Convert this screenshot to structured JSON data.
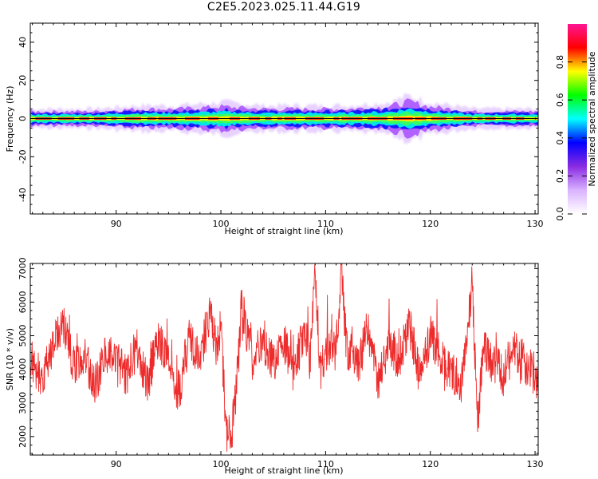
{
  "title": "C2E5.2023.025.11.44.G19",
  "colors": {
    "snr_line": "#ee2b2b",
    "colormap": [
      "#ffffff",
      "#d9b3ff",
      "#8a2be2",
      "#0000ff",
      "#00ffff",
      "#00ff00",
      "#ffff00",
      "#ff0000",
      "#ff1493"
    ]
  },
  "chart_data": [
    {
      "type": "heatmap",
      "xlabel": "Height of straight line (km)",
      "ylabel": "Frequency (Hz)",
      "xlim": [
        81.8,
        130.3
      ],
      "ylim": [
        -50,
        50
      ],
      "xticks": [
        90,
        100,
        110,
        120,
        130
      ],
      "yticks": [
        40,
        20,
        0,
        -20,
        -40
      ],
      "colorbar": {
        "label": "Normalized spectral amplitude",
        "range": [
          0,
          1
        ],
        "ticks": [
          "0.0",
          "0.2",
          "0.4",
          "0.6",
          "0.8"
        ]
      },
      "ridge_center_hz": 0,
      "ridge_halfwidth_hz": [
        {
          "x": 82,
          "w": 3
        },
        {
          "x": 88,
          "w": 3
        },
        {
          "x": 92,
          "w": 4
        },
        {
          "x": 96,
          "w": 4
        },
        {
          "x": 100,
          "w": 5
        },
        {
          "x": 104,
          "w": 4
        },
        {
          "x": 108,
          "w": 4
        },
        {
          "x": 112,
          "w": 4
        },
        {
          "x": 116,
          "w": 5
        },
        {
          "x": 118,
          "w": 7
        },
        {
          "x": 120,
          "w": 5
        },
        {
          "x": 124,
          "w": 3
        },
        {
          "x": 130,
          "w": 3
        }
      ]
    },
    {
      "type": "line",
      "xlabel": "Height of straight line (km)",
      "ylabel": "SNR (10 * v/v)",
      "xlim": [
        81.8,
        130.3
      ],
      "ylim": [
        1450,
        7150
      ],
      "xticks": [
        90,
        100,
        110,
        120,
        130
      ],
      "yticks": [
        2000,
        3000,
        4000,
        5000,
        6000,
        7000
      ],
      "series": [
        {
          "x": [
            82,
            83,
            84,
            85,
            86,
            87,
            88,
            89,
            90,
            91,
            92,
            93,
            94,
            95,
            96,
            97,
            98,
            99,
            99.5,
            100,
            100.5,
            101,
            101.5,
            102,
            103,
            104,
            105,
            106,
            107,
            108,
            108.5,
            109,
            109.5,
            110,
            111,
            111.5,
            112,
            113,
            114,
            115,
            116,
            117,
            118,
            119,
            120,
            121,
            122,
            123,
            123.5,
            124,
            124.5,
            125,
            126,
            127,
            128,
            129,
            130,
            130.3
          ],
          "y": [
            4200,
            3700,
            4800,
            5300,
            4000,
            4300,
            3500,
            4600,
            4200,
            3800,
            4700,
            3600,
            4900,
            4100,
            3300,
            5000,
            4300,
            5800,
            4700,
            5200,
            2200,
            2000,
            3500,
            5900,
            4300,
            4900,
            4100,
            4800,
            3900,
            5300,
            4300,
            7000,
            3800,
            4600,
            4500,
            7000,
            4700,
            4000,
            5200,
            3700,
            4800,
            4300,
            5300,
            3800,
            5100,
            4300,
            3900,
            3600,
            5000,
            6600,
            2300,
            4600,
            4200,
            3800,
            4500,
            4200,
            3900,
            3500
          ]
        }
      ]
    }
  ]
}
